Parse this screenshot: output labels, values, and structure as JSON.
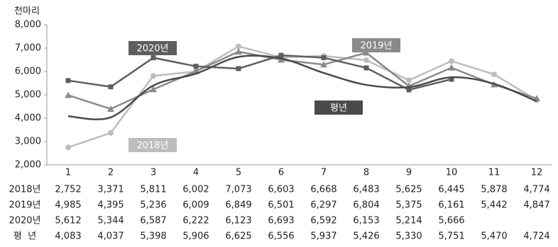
{
  "chart_data": {
    "type": "line",
    "y_label": "천마리",
    "categories": [
      "1",
      "2",
      "3",
      "4",
      "5",
      "6",
      "7",
      "8",
      "9",
      "10",
      "11",
      "12"
    ],
    "ylim": [
      2000,
      8000
    ],
    "yticks": [
      {
        "value": 2000,
        "label": "2,000"
      },
      {
        "value": 3000,
        "label": "3,000"
      },
      {
        "value": 4000,
        "label": "4,000"
      },
      {
        "value": 5000,
        "label": "5,000"
      },
      {
        "value": 6000,
        "label": "6,000"
      },
      {
        "value": 7000,
        "label": "7,000"
      },
      {
        "value": 8000,
        "label": "8,000"
      }
    ],
    "row_labels": [
      "2018년",
      "2019년",
      "2020년",
      "평  년"
    ],
    "series": [
      {
        "name": "2018년",
        "color": "#bdbdbd",
        "marker": "circle",
        "values": [
          2752,
          3371,
          5811,
          6002,
          7073,
          6603,
          6668,
          6483,
          5625,
          6445,
          5878,
          4774
        ],
        "value_labels": [
          "2,752",
          "3,371",
          "5,811",
          "6,002",
          "7,073",
          "6,603",
          "6,668",
          "6,483",
          "5,625",
          "6,445",
          "5,878",
          "4,774"
        ]
      },
      {
        "name": "2019년",
        "color": "#8a8a8a",
        "marker": "triangle",
        "values": [
          4985,
          4395,
          5236,
          6009,
          6849,
          6501,
          6297,
          6804,
          5375,
          6161,
          5442,
          4847
        ],
        "value_labels": [
          "4,985",
          "4,395",
          "5,236",
          "6,009",
          "6,849",
          "6,501",
          "6,297",
          "6,804",
          "5,375",
          "6,161",
          "5,442",
          "4,847"
        ]
      },
      {
        "name": "2020년",
        "color": "#5e5e5e",
        "marker": "square",
        "values": [
          5612,
          5344,
          6587,
          6222,
          6123,
          6693,
          6592,
          6153,
          5214,
          5666,
          null,
          null
        ],
        "value_labels": [
          "5,612",
          "5,344",
          "6,587",
          "6,222",
          "6,123",
          "6,693",
          "6,592",
          "6,153",
          "5,214",
          "5,666",
          null,
          null
        ]
      },
      {
        "name": "평년",
        "color": "#4a4a4a",
        "marker": "none",
        "values": [
          4083,
          4037,
          5398,
          5906,
          6625,
          6556,
          5937,
          5426,
          5330,
          5751,
          5470,
          4724
        ],
        "value_labels": [
          "4,083",
          "4,037",
          "5,398",
          "5,906",
          "6,625",
          "6,556",
          "5,937",
          "5,426",
          "5,330",
          "5,751",
          "5,470",
          "4,724"
        ]
      }
    ]
  }
}
